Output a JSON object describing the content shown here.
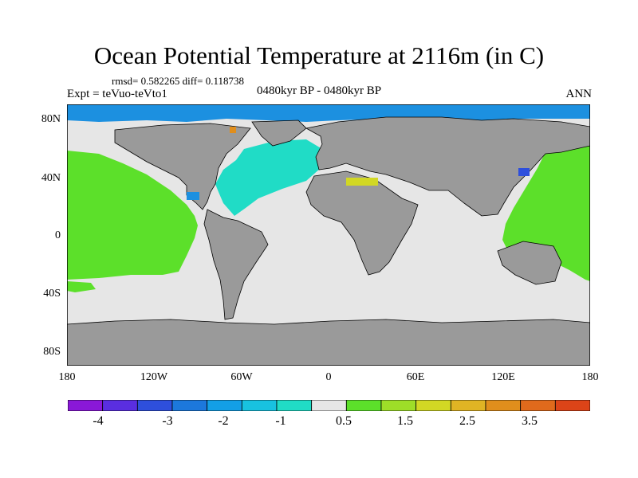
{
  "title": "Ocean Potential Temperature at 2116m (in C)",
  "stats": "rmsd= 0.582265 diff= 0.118738",
  "experiment": "Expt = teVuo-teVto1",
  "period": "0480kyr BP - 0480kyr BP",
  "season": "ANN",
  "axes": {
    "lat_ticks": [
      "80N",
      "40N",
      "0",
      "40S",
      "80S"
    ],
    "lon_ticks": [
      "180",
      "120W",
      "60W",
      "0",
      "60E",
      "120E",
      "180"
    ]
  },
  "colorbar": {
    "labels": [
      "-4",
      "-3",
      "-2",
      "-1",
      "0.5",
      "1.5",
      "2.5",
      "3.5"
    ],
    "colors": [
      "#8a18d8",
      "#5a2ee0",
      "#2e4fdc",
      "#1c78dc",
      "#139fe6",
      "#18c2e0",
      "#20dcc6",
      "#e6e6e6",
      "#5ce02a",
      "#9ede28",
      "#d2d824",
      "#e0b424",
      "#e08e1c",
      "#e06a1c",
      "#dc4418"
    ]
  },
  "colors": {
    "land": "#9a9a9a",
    "ocean_neutral": "#e6e6e6",
    "arctic": "#1c90e0",
    "atlantic": "#20dcc6",
    "pacific": "#5ce02a",
    "warm_patch": "#d2d824"
  }
}
